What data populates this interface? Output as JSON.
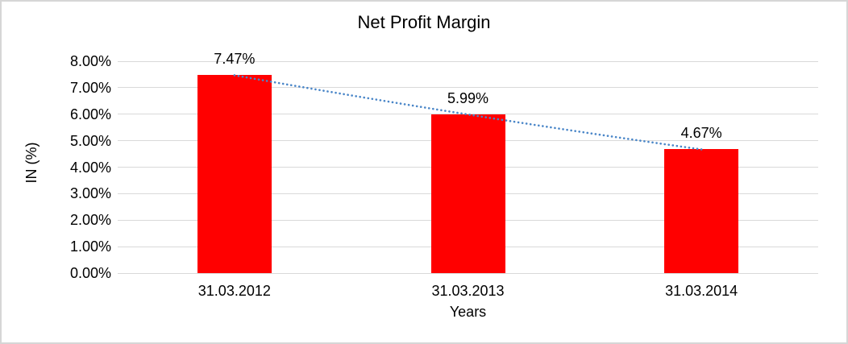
{
  "chart_data": {
    "type": "bar",
    "title": "Net Profit Margin",
    "xlabel": "Years",
    "ylabel": "IN (%)",
    "categories": [
      "31.03.2012",
      "31.03.2013",
      "31.03.2014"
    ],
    "series": [
      {
        "name": "Net Profit Margin",
        "values": [
          7.47,
          5.99,
          4.67
        ]
      }
    ],
    "data_labels": [
      "7.47%",
      "5.99%",
      "4.67%"
    ],
    "ylim": [
      0,
      8
    ],
    "yticks": [
      0,
      1,
      2,
      3,
      4,
      5,
      6,
      7,
      8
    ],
    "ytick_labels": [
      "0.00%",
      "1.00%",
      "2.00%",
      "3.00%",
      "4.00%",
      "5.00%",
      "6.00%",
      "7.00%",
      "8.00%"
    ],
    "grid": true,
    "legend": "none",
    "trendline": {
      "style": "dotted",
      "color": "#4A86C8",
      "through_values": [
        7.47,
        5.99,
        4.67
      ]
    },
    "colors": {
      "bar": "#FF0000",
      "gridline": "#D9D9D9",
      "text": "#000000",
      "background": "#FFFFFF",
      "chart_border": "#D6D6D6"
    }
  }
}
